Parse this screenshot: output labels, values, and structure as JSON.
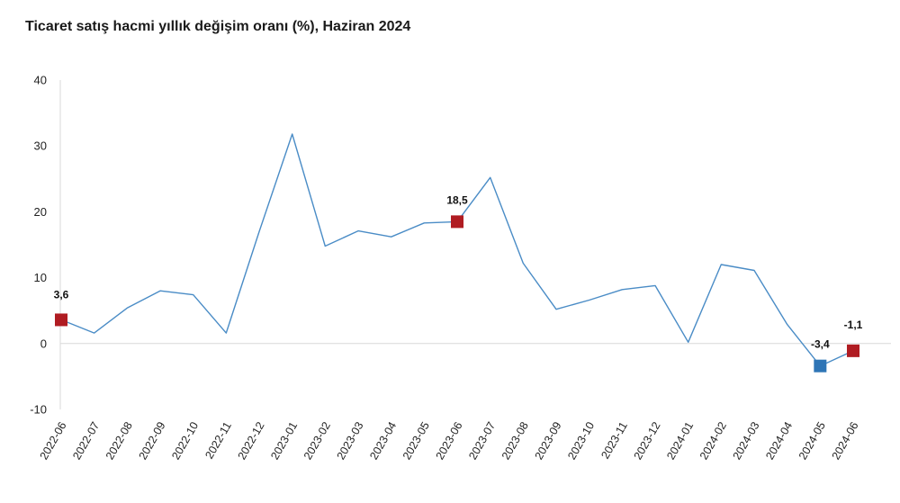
{
  "chart_data": {
    "type": "line",
    "title": "Ticaret satış hacmi yıllık değişim oranı (%), Haziran 2024",
    "xlabel": "",
    "ylabel": "",
    "ylim": [
      -10,
      40
    ],
    "yticks": [
      -10,
      0,
      10,
      20,
      30,
      40
    ],
    "grid": false,
    "categories": [
      "2022-06",
      "2022-07",
      "2022-08",
      "2022-09",
      "2022-10",
      "2022-11",
      "2022-12",
      "2023-01",
      "2023-02",
      "2023-03",
      "2023-04",
      "2023-05",
      "2023-06",
      "2023-07",
      "2023-08",
      "2023-09",
      "2023-10",
      "2023-11",
      "2023-12",
      "2024-01",
      "2024-02",
      "2024-03",
      "2024-04",
      "2024-05",
      "2024-06"
    ],
    "series": [
      {
        "name": "",
        "color": "#4a8cc6",
        "values": [
          3.6,
          1.6,
          5.4,
          8.0,
          7.4,
          1.6,
          17.0,
          31.8,
          14.8,
          17.1,
          16.2,
          18.3,
          18.5,
          25.2,
          12.2,
          5.2,
          6.6,
          8.2,
          8.8,
          0.2,
          12.0,
          11.1,
          2.9,
          -3.4,
          -1.1
        ]
      }
    ],
    "highlighted_points": [
      {
        "index": 0,
        "label": "3,6",
        "color": "#b01c22"
      },
      {
        "index": 12,
        "label": "18,5",
        "color": "#b01c22"
      },
      {
        "index": 23,
        "label": "-3,4",
        "color": "#2e75b6"
      },
      {
        "index": 24,
        "label": "-1,1",
        "color": "#b01c22"
      }
    ],
    "axis_color": "#d9d9d9",
    "zero_line_color": "#d9d9d9"
  }
}
